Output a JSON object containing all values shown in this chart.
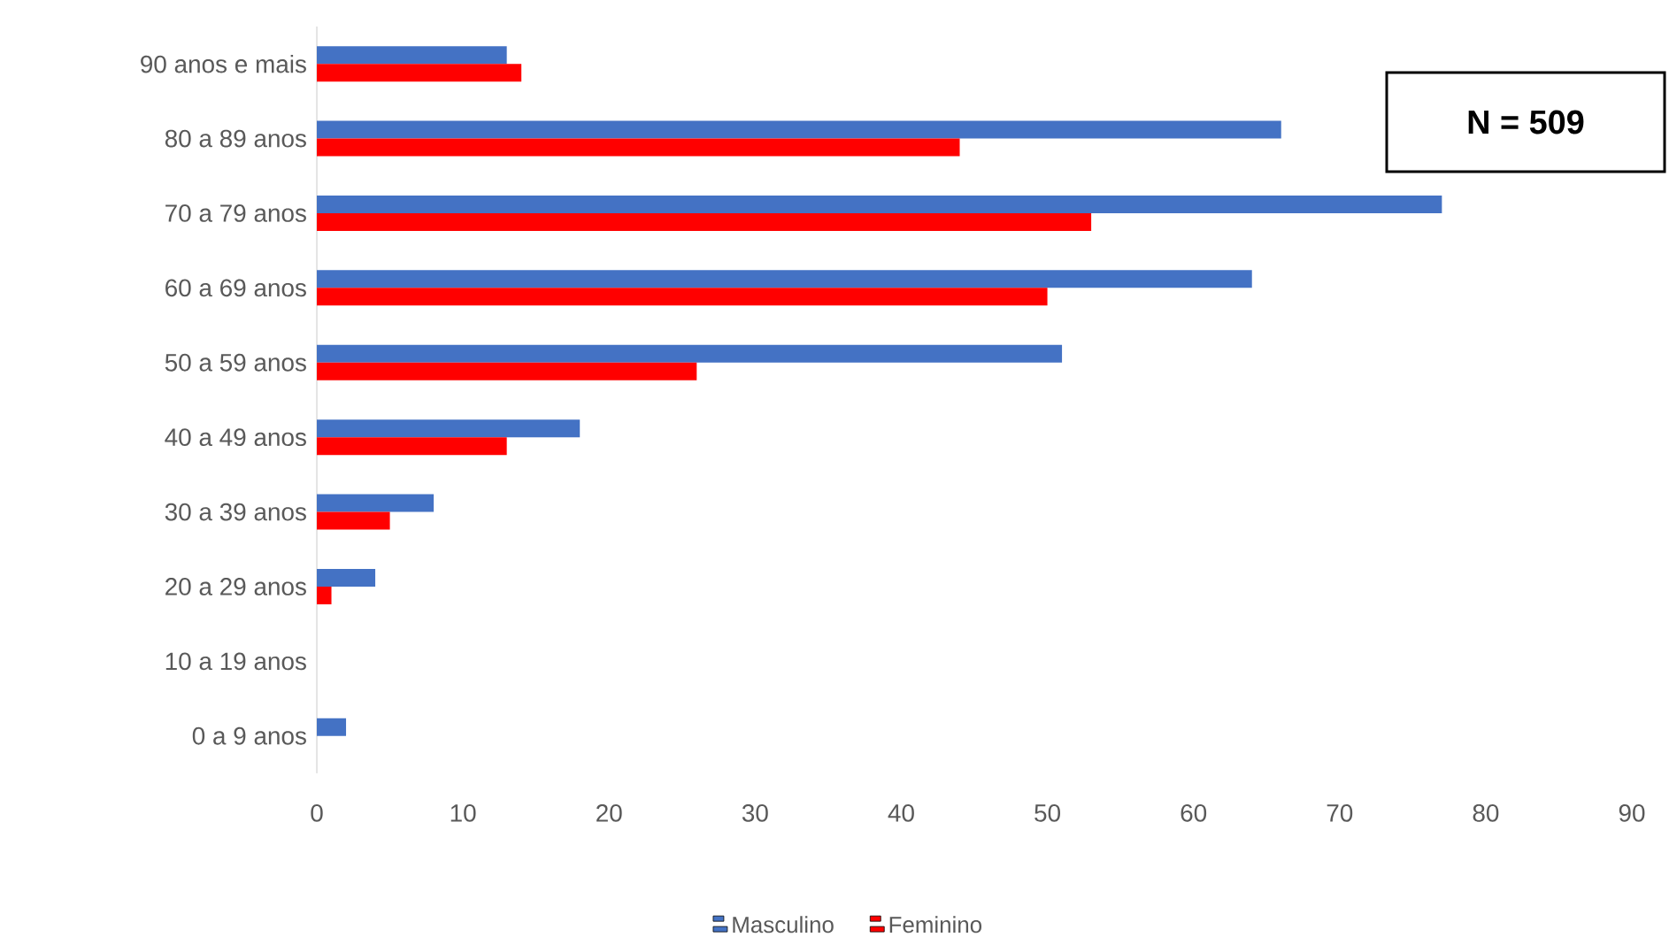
{
  "chart_data": {
    "type": "bar",
    "orientation": "horizontal",
    "categories": [
      "90 anos e mais",
      "80 a 89 anos",
      "70 a 79 anos",
      "60 a 69 anos",
      "50 a 59 anos",
      "40 a 49 anos",
      "30 a 39 anos",
      "20 a 29 anos",
      "10 a 19 anos",
      "0 a 9 anos"
    ],
    "series": [
      {
        "name": "Masculino",
        "color": "#4472c4",
        "values": [
          13,
          66,
          77,
          64,
          51,
          18,
          8,
          4,
          0,
          2
        ]
      },
      {
        "name": "Feminino",
        "color": "#ff0000",
        "values": [
          14,
          44,
          53,
          50,
          26,
          13,
          5,
          1,
          0,
          0
        ]
      }
    ],
    "xlim": [
      0,
      90
    ],
    "xticks": [
      0,
      10,
      20,
      30,
      40,
      50,
      60,
      70,
      80,
      90
    ],
    "legend": "bottom",
    "grid": false,
    "annotations": [
      "N = 509"
    ]
  }
}
